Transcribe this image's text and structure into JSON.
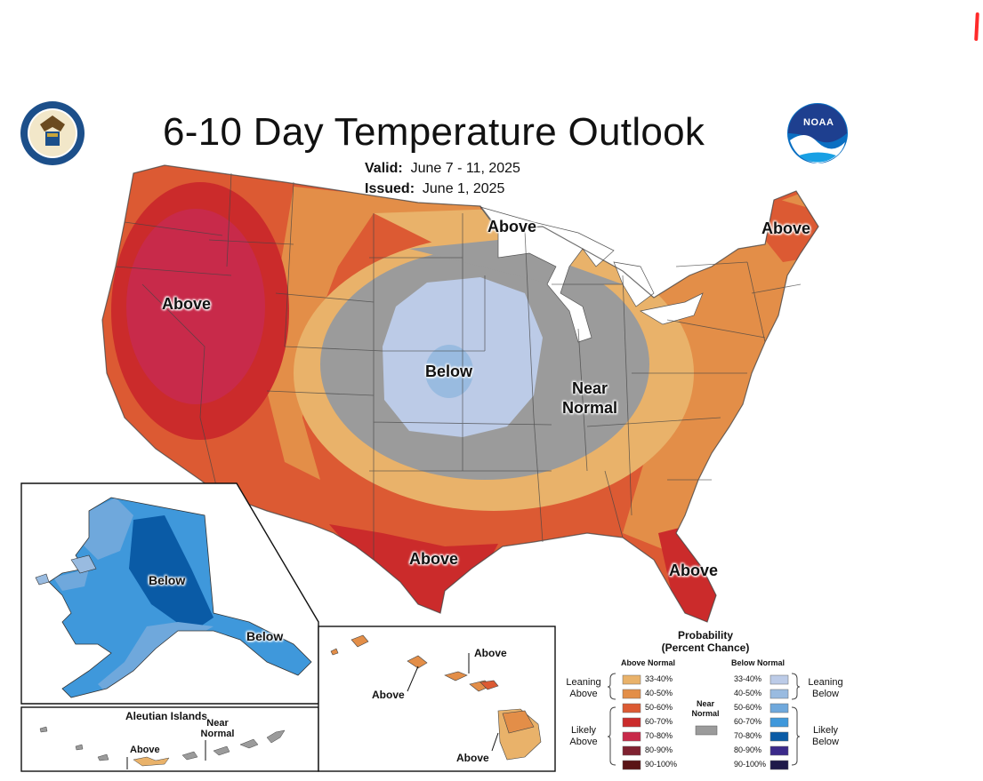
{
  "header": {
    "title": "6-10 Day Temperature Outlook",
    "valid_label": "Valid:",
    "valid_dates": "June 7 - 11, 2025",
    "issued_label": "Issued:",
    "issued_date": "June 1, 2025"
  },
  "logos": {
    "commerce_seal": "department-of-commerce-seal-icon",
    "noaa_logo_text": "NOAA"
  },
  "conus_labels": {
    "west": "Above",
    "upper_midwest": "Above",
    "maine": "Above",
    "central": "Below",
    "midwest": "Near Normal",
    "texas": "Above",
    "florida": "Above"
  },
  "alaska": {
    "center": "Below",
    "panhandle": "Below"
  },
  "aleutian": {
    "title": "Aleutian Islands",
    "near": "Near Normal",
    "above": "Above"
  },
  "hawaii": {
    "top_right": "Above",
    "left": "Above",
    "bottom": "Above"
  },
  "legend": {
    "title": "Probability (Percent Chance)",
    "above_header": "Above Normal",
    "below_header": "Below Normal",
    "near_label": "Near Normal",
    "leaning_above": "Leaning Above",
    "likely_above": "Likely Above",
    "leaning_below": "Leaning Below",
    "likely_below": "Likely Below",
    "above_bins": [
      {
        "label": "33-40%",
        "color": "#e9b26a"
      },
      {
        "label": "40-50%",
        "color": "#e38e48"
      },
      {
        "label": "50-60%",
        "color": "#dc5a33"
      },
      {
        "label": "60-70%",
        "color": "#cb2b2b"
      },
      {
        "label": "70-80%",
        "color": "#c82a4a"
      },
      {
        "label": "80-90%",
        "color": "#7f2130"
      },
      {
        "label": "90-100%",
        "color": "#5a1416"
      }
    ],
    "below_bins": [
      {
        "label": "33-40%",
        "color": "#bccbe7"
      },
      {
        "label": "40-50%",
        "color": "#99bbe0"
      },
      {
        "label": "50-60%",
        "color": "#6fa8dc"
      },
      {
        "label": "60-70%",
        "color": "#3f98db"
      },
      {
        "label": "70-80%",
        "color": "#0a5ba6"
      },
      {
        "label": "80-90%",
        "color": "#3b2a8a"
      },
      {
        "label": "90-100%",
        "color": "#1f1a4a"
      }
    ],
    "near_color": "#9b9b9b"
  }
}
